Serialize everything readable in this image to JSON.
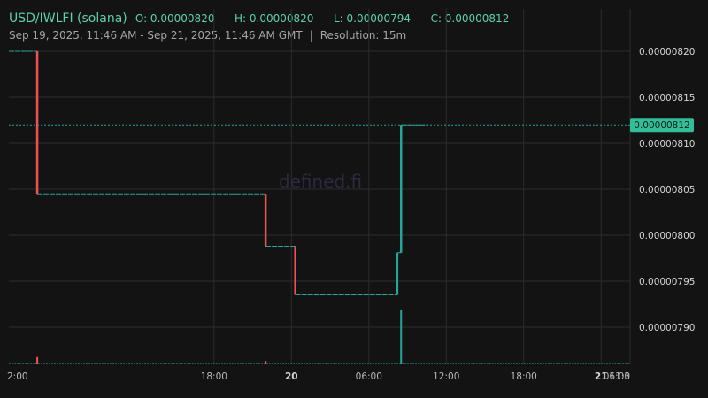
{
  "header": {
    "title": "USD/IWLFI (solana)",
    "open": "O: 0.00000820",
    "high": "H: 0.00000820",
    "low": "L: 0.00000794",
    "close": "C: 0.00000812",
    "range": "Sep 19, 2025, 11:46 AM - Sep 21, 2025, 11:46 AM GMT",
    "separator": "|",
    "resolution": "Resolution: 15m"
  },
  "watermark": "defined.fi",
  "colors": {
    "up": "#26a69a",
    "down": "#ef5350",
    "text": "#5ad1b0",
    "background": "#131313"
  },
  "chart_data": {
    "type": "candlestick",
    "title": "USD/IWLFI (solana)",
    "y_ticks": [
      "0.00000820",
      "0.00000815",
      "0.00000810",
      "0.00000805",
      "0.00000800",
      "0.00000795",
      "0.00000790"
    ],
    "y_tick_values": [
      8.2e-06,
      8.15e-06,
      8.1e-06,
      8.05e-06,
      8e-06,
      7.95e-06,
      7.9e-06
    ],
    "ylim": [
      7.86e-06,
      8.22e-06
    ],
    "x_ticks": [
      {
        "label": "2:00",
        "hours": -0.1
      },
      {
        "label": "18:00",
        "hours": 15.9
      },
      {
        "label": "20",
        "hours": 21.9,
        "bold": true
      },
      {
        "label": "06:00",
        "hours": 27.9
      },
      {
        "label": "12:00",
        "hours": 33.9
      },
      {
        "label": "18:00",
        "hours": 39.9
      },
      {
        "label": "21",
        "hours": 45.9,
        "bold": true
      },
      {
        "label": "06:00",
        "hours": 51.9
      },
      {
        "label": "11:3",
        "hours": 57.4
      }
    ],
    "last_price": "0.00000812",
    "last_value": 8.12e-06,
    "price_segments": [
      {
        "from": 0,
        "to": 2.2,
        "price": 8.2e-06
      },
      {
        "from": 2.2,
        "to": 19.9,
        "price": 8.045e-06
      },
      {
        "from": 19.9,
        "to": 22.2,
        "price": 7.988e-06
      },
      {
        "from": 22.2,
        "to": 30.1,
        "price": 7.936e-06
      },
      {
        "from": 30.1,
        "to": 30.4,
        "price": 7.981e-06
      },
      {
        "from": 30.4,
        "to": 32.5,
        "price": 8.12e-06
      }
    ],
    "candles": [
      {
        "t": 2.2,
        "open": 8.2e-06,
        "close": 8.045e-06
      },
      {
        "t": 19.9,
        "open": 8.045e-06,
        "close": 7.988e-06
      },
      {
        "t": 22.2,
        "open": 7.988e-06,
        "close": 7.936e-06
      },
      {
        "t": 30.1,
        "open": 7.936e-06,
        "close": 7.981e-06
      },
      {
        "t": 30.4,
        "open": 7.981e-06,
        "close": 8.12e-06
      }
    ],
    "volume": [
      {
        "t": 2.2,
        "value": 0.12,
        "dir": "down"
      },
      {
        "t": 19.9,
        "value": 0.05,
        "dir": "down"
      },
      {
        "t": 30.4,
        "value": 1.0,
        "dir": "up"
      }
    ],
    "grid": true
  }
}
